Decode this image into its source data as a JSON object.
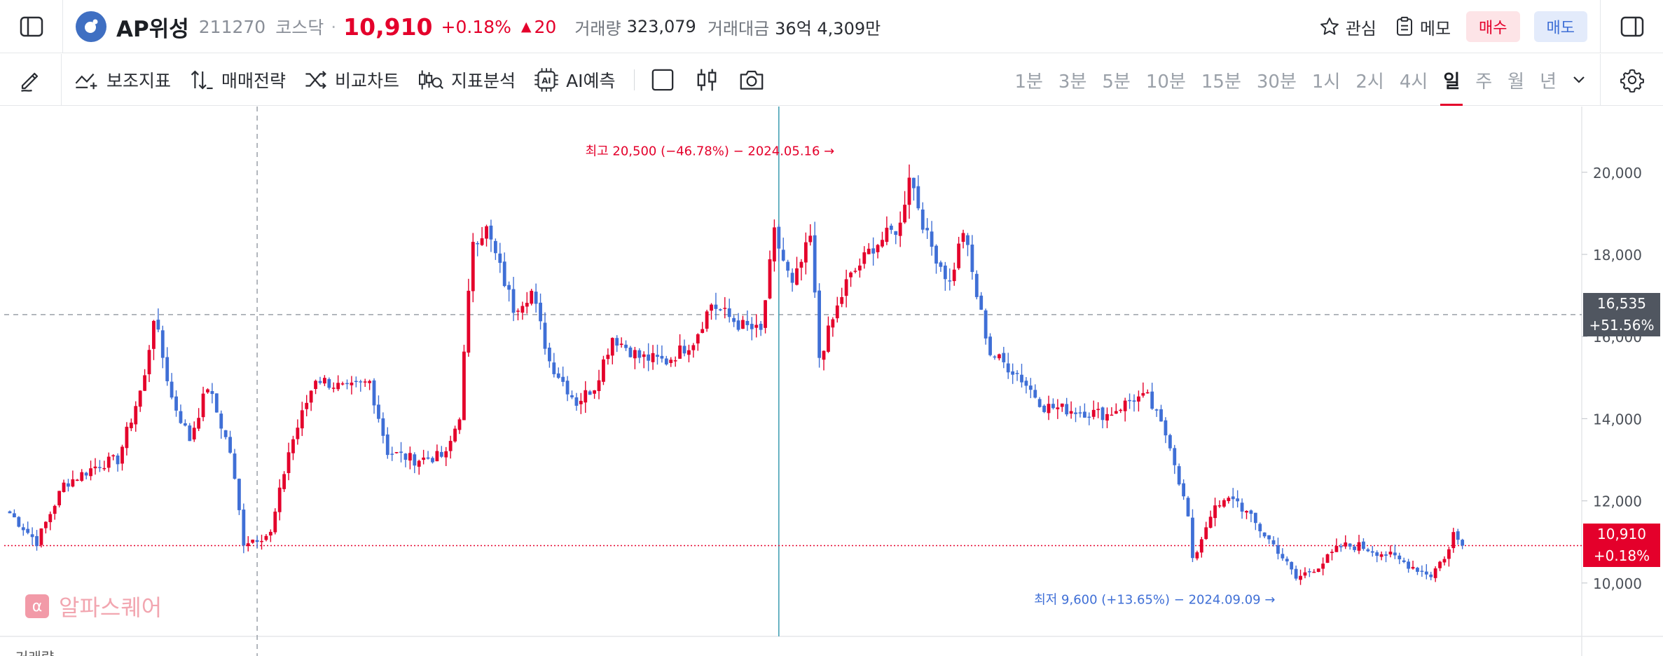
{
  "header": {
    "stock_name": "AP위성",
    "stock_code": "211270",
    "market": "코스닥",
    "separator": "·",
    "price": "10,910",
    "change_pct": "+0.18%",
    "change_arrow": "▲",
    "change_amt": "20",
    "volume_label": "거래량",
    "volume": "323,079",
    "trade_value_label": "거래대금",
    "trade_value": "36억 4,309만",
    "interest_label": "관심",
    "memo_label": "메모",
    "buy_label": "매수",
    "sell_label": "매도"
  },
  "toolbar": {
    "indicators_label": "보조지표",
    "strategy_label": "매매전략",
    "compare_label": "비교차트",
    "analysis_label": "지표분석",
    "ai_label": "AI예측",
    "periods": [
      "1분",
      "3분",
      "5분",
      "10분",
      "15분",
      "30분",
      "1시",
      "2시",
      "4시",
      "일",
      "주",
      "월",
      "년"
    ],
    "active_period": "일"
  },
  "watermark": "알파스퀘어",
  "colors": {
    "up": "#e4002b",
    "down": "#3f6fd6",
    "crosshair_tag": "#505660",
    "accent": "#e4002b"
  },
  "chart_data": {
    "type": "candlestick",
    "interval": "daily",
    "ylim": [
      8700,
      21600
    ],
    "yticks": [
      10000,
      12000,
      14000,
      16000,
      18000,
      20000
    ],
    "ytick_labels": [
      "10,000",
      "12,000",
      "14,000",
      "16,000",
      "18,000",
      "20,000"
    ],
    "grid": false,
    "high_annotation": {
      "text": "최고 20,500 (−46.78%) − 2024.05.16",
      "value": 20500,
      "index": 184
    },
    "low_annotation": {
      "text": "최저 9,600 (+13.65%) − 2024.09.09",
      "value": 9600,
      "index": 282
    },
    "crosshair": {
      "price": 16535,
      "label": "16,535",
      "pct_label": "+51.56%",
      "index": 55
    },
    "last": {
      "price": 10910,
      "label": "10,910",
      "pct_label": "+0.18%"
    },
    "selected_index": 171,
    "keypoints": [
      [
        0,
        11700
      ],
      [
        6,
        11000
      ],
      [
        12,
        12400
      ],
      [
        20,
        12900
      ],
      [
        24,
        13000
      ],
      [
        30,
        15000
      ],
      [
        32,
        16500
      ],
      [
        36,
        14500
      ],
      [
        40,
        13500
      ],
      [
        44,
        14800
      ],
      [
        49,
        13200
      ],
      [
        52,
        11000
      ],
      [
        58,
        11200
      ],
      [
        62,
        13200
      ],
      [
        68,
        15000
      ],
      [
        75,
        14700
      ],
      [
        80,
        14900
      ],
      [
        84,
        13200
      ],
      [
        90,
        13000
      ],
      [
        97,
        13100
      ],
      [
        100,
        14100
      ],
      [
        103,
        18400
      ],
      [
        106,
        18600
      ],
      [
        112,
        16700
      ],
      [
        116,
        17100
      ],
      [
        120,
        15400
      ],
      [
        126,
        14400
      ],
      [
        130,
        14800
      ],
      [
        134,
        16000
      ],
      [
        140,
        15500
      ],
      [
        146,
        15400
      ],
      [
        152,
        15900
      ],
      [
        156,
        16800
      ],
      [
        162,
        16300
      ],
      [
        167,
        16100
      ],
      [
        170,
        18500
      ],
      [
        174,
        17200
      ],
      [
        178,
        18400
      ],
      [
        180,
        15500
      ],
      [
        184,
        16700
      ],
      [
        186,
        17300
      ],
      [
        192,
        18200
      ],
      [
        198,
        18700
      ],
      [
        200,
        20000
      ],
      [
        204,
        18400
      ],
      [
        209,
        17300
      ],
      [
        212,
        18600
      ],
      [
        215,
        17000
      ],
      [
        218,
        15600
      ],
      [
        224,
        15100
      ],
      [
        230,
        14300
      ],
      [
        237,
        14200
      ],
      [
        244,
        14100
      ],
      [
        250,
        14500
      ],
      [
        253,
        14500
      ],
      [
        258,
        13400
      ],
      [
        262,
        11600
      ],
      [
        263,
        10500
      ],
      [
        267,
        11700
      ],
      [
        272,
        12100
      ],
      [
        278,
        11300
      ],
      [
        282,
        10800
      ],
      [
        286,
        10100
      ],
      [
        292,
        10500
      ],
      [
        296,
        10900
      ],
      [
        300,
        10900
      ],
      [
        306,
        10700
      ],
      [
        312,
        10400
      ],
      [
        316,
        10200
      ],
      [
        318,
        10500
      ],
      [
        320,
        10800
      ],
      [
        321,
        11200
      ],
      [
        323,
        10910
      ]
    ],
    "volume_label": "거래량"
  }
}
